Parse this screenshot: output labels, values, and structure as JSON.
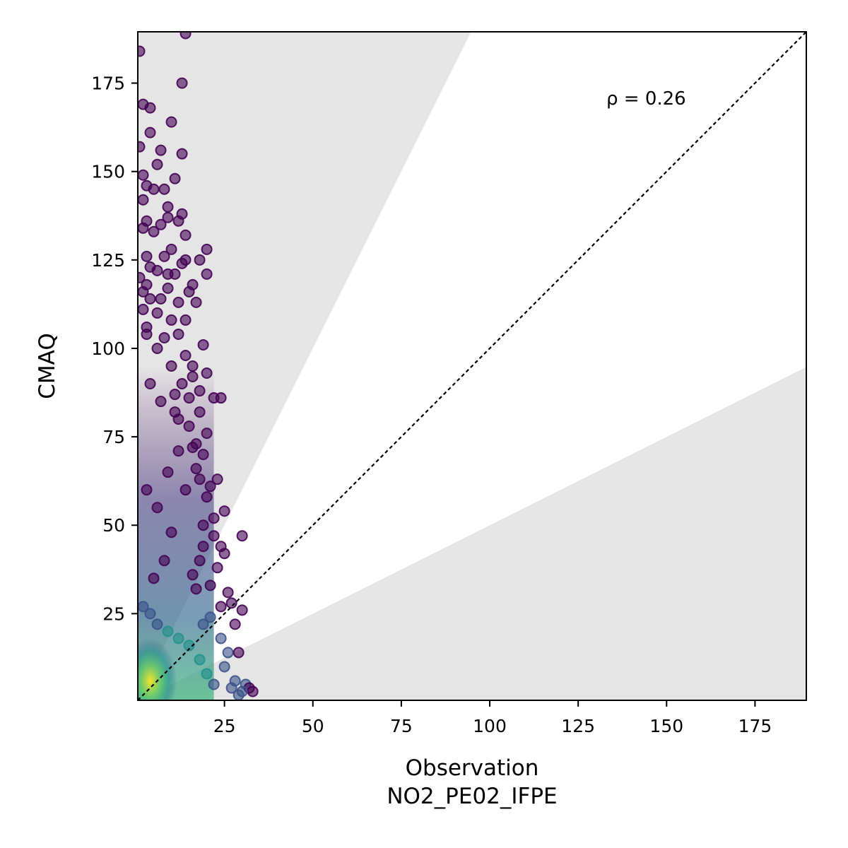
{
  "chart_data": {
    "type": "scatter",
    "title": "",
    "xlabel": "Observation",
    "xlabel_sub": "NO2_PE02_IFPE",
    "ylabel": "CMAQ",
    "xlim": [
      0.5,
      189.5
    ],
    "ylim": [
      0.5,
      189.5
    ],
    "xticks": [
      25,
      50,
      75,
      100,
      125,
      150,
      175
    ],
    "yticks": [
      25,
      50,
      75,
      100,
      125,
      150,
      175
    ],
    "grid": false,
    "annotation": "ρ = 0.26",
    "one_to_one_line": true,
    "shaded_band_slopes": [
      2.0,
      0.5
    ],
    "band_color": "#e5e5e5",
    "colormap": "viridis",
    "point_alpha": 0.6,
    "points": [
      [
        1,
        184
      ],
      [
        2,
        169
      ],
      [
        4,
        168
      ],
      [
        4,
        161
      ],
      [
        14,
        189
      ],
      [
        13,
        175
      ],
      [
        10,
        164
      ],
      [
        7,
        156
      ],
      [
        1,
        157
      ],
      [
        13,
        155
      ],
      [
        6,
        152
      ],
      [
        2,
        149
      ],
      [
        11,
        148
      ],
      [
        3,
        146
      ],
      [
        5,
        145
      ],
      [
        8,
        145
      ],
      [
        2,
        142
      ],
      [
        9,
        140
      ],
      [
        13,
        138
      ],
      [
        9,
        137
      ],
      [
        12,
        136
      ],
      [
        3,
        136
      ],
      [
        7,
        135
      ],
      [
        2,
        134
      ],
      [
        14,
        132
      ],
      [
        5,
        133
      ],
      [
        20,
        128
      ],
      [
        10,
        128
      ],
      [
        8,
        126
      ],
      [
        3,
        126
      ],
      [
        14,
        125
      ],
      [
        18,
        125
      ],
      [
        13,
        124
      ],
      [
        4,
        123
      ],
      [
        6,
        122
      ],
      [
        9,
        121
      ],
      [
        20,
        121
      ],
      [
        11,
        121
      ],
      [
        1,
        120
      ],
      [
        3,
        118
      ],
      [
        16,
        118
      ],
      [
        15,
        116
      ],
      [
        2,
        116
      ],
      [
        9,
        117
      ],
      [
        4,
        114
      ],
      [
        12,
        113
      ],
      [
        17,
        113
      ],
      [
        7,
        114
      ],
      [
        2,
        111
      ],
      [
        6,
        110
      ],
      [
        10,
        108
      ],
      [
        14,
        108
      ],
      [
        3,
        106
      ],
      [
        19,
        101
      ],
      [
        12,
        104
      ],
      [
        8,
        103
      ],
      [
        20,
        93
      ],
      [
        16,
        92
      ],
      [
        22,
        86
      ],
      [
        24,
        86
      ],
      [
        15,
        86
      ],
      [
        11,
        82
      ],
      [
        18,
        82
      ],
      [
        20,
        76
      ],
      [
        17,
        73
      ],
      [
        12,
        71
      ],
      [
        16,
        72
      ],
      [
        19,
        70
      ],
      [
        23,
        63
      ],
      [
        18,
        63
      ],
      [
        21,
        61
      ],
      [
        14,
        60
      ],
      [
        25,
        54
      ],
      [
        30,
        47
      ],
      [
        22,
        47
      ],
      [
        24,
        44
      ],
      [
        25,
        42
      ],
      [
        19,
        44
      ],
      [
        18,
        40
      ],
      [
        16,
        36
      ],
      [
        21,
        33
      ],
      [
        17,
        32
      ],
      [
        27,
        28
      ],
      [
        30,
        26
      ],
      [
        24,
        27
      ],
      [
        21,
        24
      ],
      [
        19,
        22
      ],
      [
        24,
        18
      ],
      [
        26,
        14
      ],
      [
        29,
        14
      ],
      [
        25,
        10
      ],
      [
        28,
        6
      ],
      [
        31,
        5
      ],
      [
        32,
        4
      ],
      [
        33,
        3
      ],
      [
        30,
        3
      ],
      [
        29,
        2
      ],
      [
        27,
        4
      ],
      [
        22,
        5
      ],
      [
        20,
        8
      ],
      [
        18,
        12
      ],
      [
        15,
        16
      ],
      [
        12,
        18
      ],
      [
        9,
        20
      ],
      [
        6,
        22
      ],
      [
        4,
        25
      ],
      [
        2,
        27
      ],
      [
        5,
        35
      ],
      [
        8,
        40
      ],
      [
        10,
        48
      ],
      [
        6,
        55
      ],
      [
        3,
        60
      ],
      [
        9,
        65
      ],
      [
        12,
        80
      ],
      [
        7,
        85
      ],
      [
        4,
        90
      ],
      [
        10,
        95
      ],
      [
        14,
        98
      ],
      [
        6,
        100
      ],
      [
        3,
        104
      ],
      [
        16,
        95
      ],
      [
        18,
        88
      ],
      [
        13,
        90
      ],
      [
        11,
        87
      ],
      [
        15,
        78
      ],
      [
        17,
        66
      ],
      [
        20,
        58
      ],
      [
        22,
        52
      ],
      [
        19,
        50
      ],
      [
        23,
        38
      ],
      [
        26,
        31
      ],
      [
        28,
        22
      ]
    ]
  }
}
